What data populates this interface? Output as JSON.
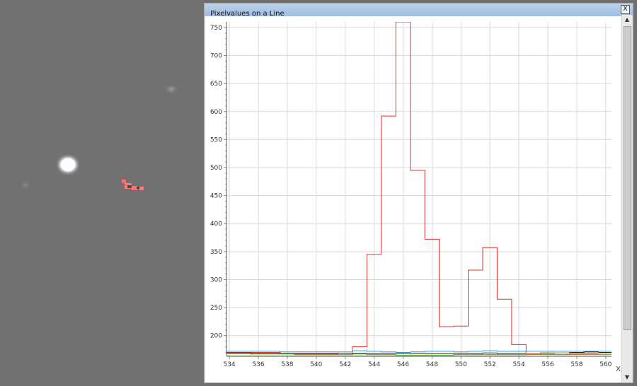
{
  "window": {
    "title": "Pixelvalues on a Line",
    "close_glyph": "X"
  },
  "scrollbar": {
    "up_glyph": "▲",
    "down_glyph": "▼"
  },
  "chart_data": {
    "type": "line",
    "title": "",
    "xlabel": "X",
    "ylabel": "",
    "xlim": [
      533.8,
      560.4
    ],
    "ylim": [
      163,
      760
    ],
    "grid": true,
    "x_ticks": [
      534,
      536,
      538,
      540,
      542,
      544,
      546,
      548,
      550,
      552,
      554,
      556,
      558,
      560
    ],
    "y_ticks": [
      200,
      250,
      300,
      350,
      400,
      450,
      500,
      550,
      600,
      650,
      700,
      750
    ],
    "step": true,
    "x": [
      533.5,
      534.5,
      535.5,
      536.5,
      537.5,
      538.5,
      539.5,
      540.5,
      541.5,
      542.5,
      543.5,
      544.5,
      545.5,
      546.5,
      547.5,
      548.5,
      549.5,
      550.5,
      551.5,
      552.5,
      553.5,
      554.5,
      555.5,
      556.5,
      557.5,
      558.5,
      559.5,
      560.5
    ],
    "series": [
      {
        "color": "#e8322f",
        "values": [
          170,
          170,
          170,
          170,
          168,
          167,
          167,
          167,
          168,
          180,
          345,
          592,
          760,
          495,
          372,
          216,
          217,
          317,
          357,
          265,
          184,
          167,
          166,
          166,
          167,
          168,
          168,
          168
        ]
      },
      {
        "color": "#3a9ad6",
        "values": [
          172,
          172,
          172,
          172,
          171,
          171,
          171,
          171,
          171,
          173,
          172,
          171,
          170,
          171,
          172,
          172,
          171,
          172,
          173,
          172,
          172,
          172,
          172,
          172,
          172,
          172,
          172,
          172
        ]
      },
      {
        "color": "#3fae4a",
        "values": [
          168,
          168,
          167,
          167,
          167,
          166,
          166,
          166,
          166,
          167,
          166,
          166,
          165,
          165,
          165,
          165,
          166,
          166,
          166,
          166,
          166,
          166,
          166,
          166,
          166,
          166,
          166,
          166
        ]
      },
      {
        "color": "#222222",
        "values": [
          169,
          169,
          168,
          168,
          168,
          168,
          168,
          168,
          168,
          168,
          168,
          168,
          168,
          168,
          168,
          168,
          168,
          168,
          169,
          168,
          168,
          168,
          169,
          169,
          170,
          171,
          170,
          170
        ]
      },
      {
        "color": "#c8b400",
        "values": [
          164,
          164,
          164,
          164,
          164,
          164,
          164,
          164,
          164,
          164,
          164,
          164,
          164,
          164,
          164,
          164,
          164,
          164,
          164,
          164,
          164,
          168,
          168,
          169,
          168,
          169,
          168,
          168
        ]
      }
    ]
  }
}
